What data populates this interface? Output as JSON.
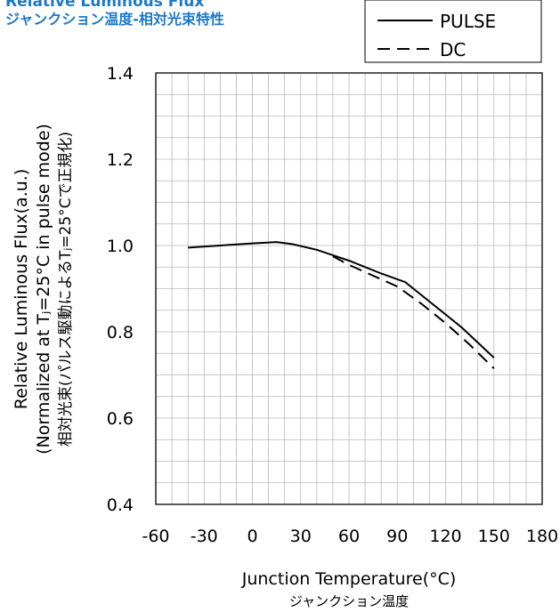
{
  "chart_data": {
    "type": "line",
    "title": "Relative Luminous Flux",
    "subtitle": "ジャンクション温度-相対光束特性",
    "xlabel": "Junction Temperature(°C)",
    "xlabel_jp": "ジャンクション温度",
    "ylabel": "Relative Luminous Flux(a.u.)",
    "ylabel_line2": "(Normalized at Tⱼ=25°C in pulse mode)",
    "ylabel_jp": "相対光束(パルス駆動によるTⱼ=25°Cで正規化)",
    "xlim": [
      -60,
      180
    ],
    "ylim": [
      0.4,
      1.4
    ],
    "x_ticks": [
      "-60",
      "-30",
      "0",
      "30",
      "60",
      "90",
      "120",
      "150",
      "180"
    ],
    "y_ticks": [
      "0.4",
      "0.6",
      "0.8",
      "1.0",
      "1.2",
      "1.4"
    ],
    "grid": true,
    "legend_position": "top-right",
    "series": [
      {
        "name": "PULSE",
        "style": "solid",
        "x": [
          -40,
          -20,
          0,
          15,
          25,
          40,
          60,
          80,
          95,
          110,
          130,
          150
        ],
        "y": [
          0.995,
          1.0,
          1.005,
          1.008,
          1.003,
          0.99,
          0.965,
          0.935,
          0.915,
          0.87,
          0.81,
          0.74
        ]
      },
      {
        "name": "DC",
        "style": "dashed",
        "x": [
          50,
          60,
          75,
          90,
          105,
          120,
          135,
          150
        ],
        "y": [
          0.975,
          0.955,
          0.93,
          0.905,
          0.865,
          0.82,
          0.77,
          0.715
        ]
      }
    ]
  }
}
